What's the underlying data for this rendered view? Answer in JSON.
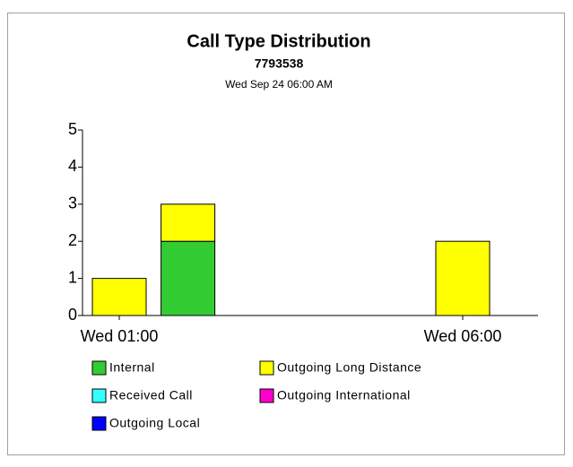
{
  "chart_data": {
    "type": "stacked_bar",
    "title": "Call Type Distribution",
    "subtitle": "7793538",
    "date_label": "Wed Sep 24 06:00 AM",
    "categories": [
      "Wed 01:00",
      null,
      null,
      null,
      null,
      "Wed 06:00"
    ],
    "series": [
      {
        "name": "Internal",
        "color": "#33cc33",
        "values": [
          0,
          2,
          0,
          0,
          0,
          0
        ]
      },
      {
        "name": "Outgoing Long Distance",
        "color": "#ffff00",
        "values": [
          1,
          1,
          0,
          0,
          0,
          2
        ]
      },
      {
        "name": "Received Call",
        "color": "#33ffff",
        "values": [
          0,
          0,
          0,
          0,
          0,
          0
        ]
      },
      {
        "name": "Outgoing International",
        "color": "#ff00cc",
        "values": [
          0,
          0,
          0,
          0,
          0,
          0
        ]
      },
      {
        "name": "Outgoing Local",
        "color": "#0000ff",
        "values": [
          0,
          0,
          0,
          0,
          0,
          0
        ]
      }
    ],
    "ylim": [
      0,
      5
    ],
    "yticks": [
      0,
      1,
      2,
      3,
      4,
      5
    ]
  }
}
